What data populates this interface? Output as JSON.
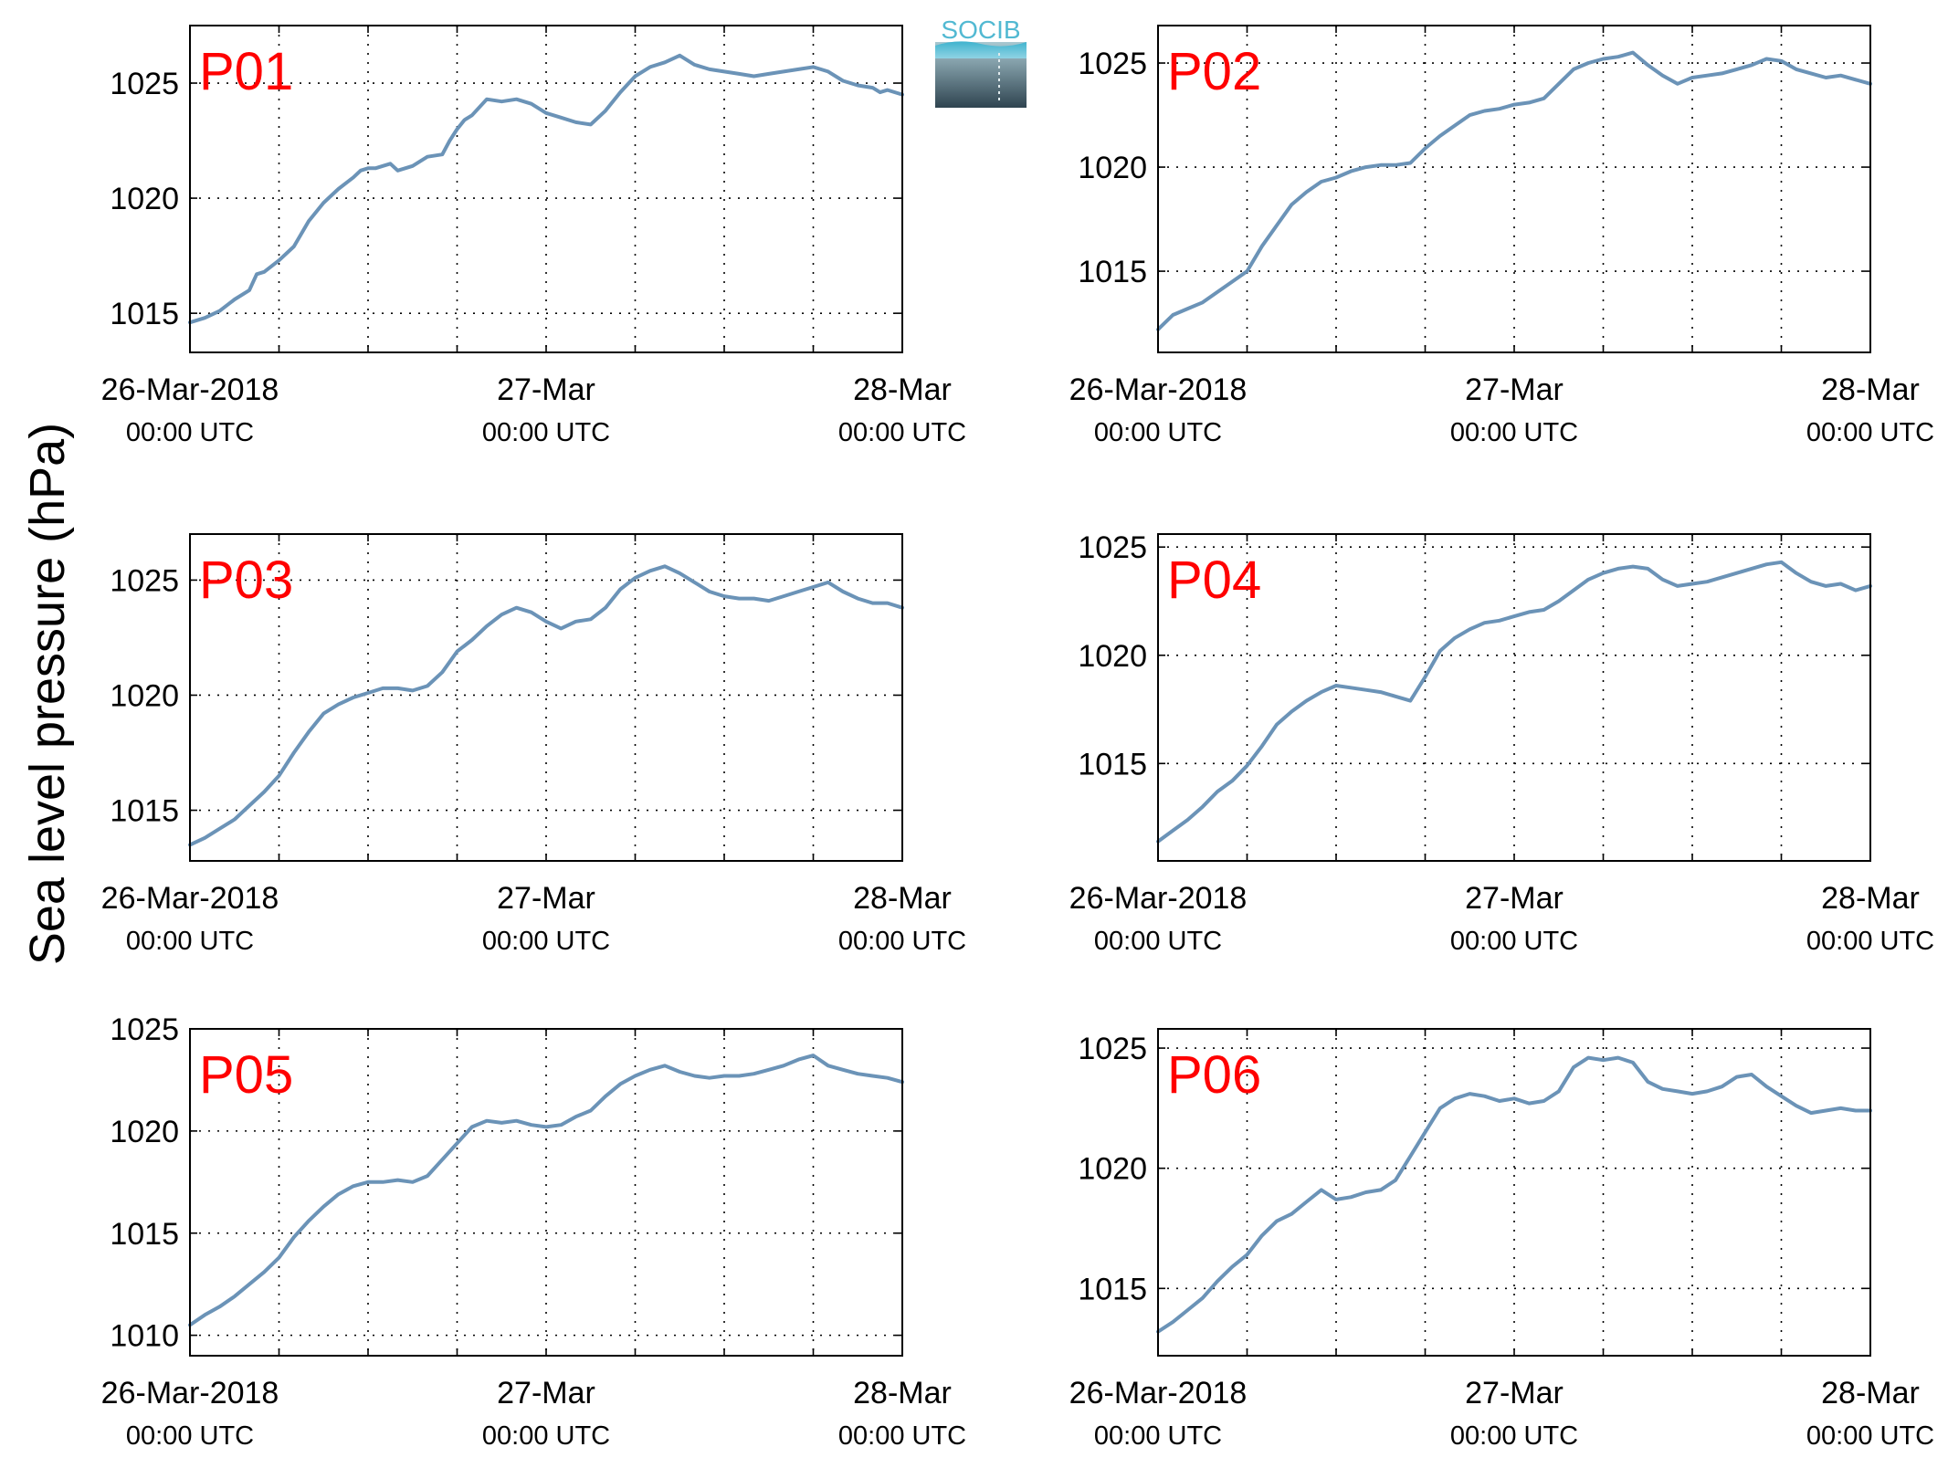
{
  "figure": {
    "ylabel": "Sea level pressure (hPa)",
    "logo_text": "SOCIB"
  },
  "colors": {
    "line": "#6b93b7",
    "panel_label": "#ff0000",
    "grid": "#000000",
    "axes": "#000000"
  },
  "chart_data": [
    {
      "type": "line",
      "panel_label": "P01",
      "x_unit": "hours since 26-Mar-2018 00:00 UTC",
      "xlim": [
        0,
        48
      ],
      "ylim": [
        1013.3,
        1027.5
      ],
      "yticks": [
        1015,
        1020,
        1025
      ],
      "xtick_labels": [
        [
          "26-Mar-2018",
          "00:00 UTC"
        ],
        [
          "27-Mar",
          "00:00 UTC"
        ],
        [
          "28-Mar",
          "00:00 UTC"
        ]
      ],
      "series": [
        {
          "x": [
            0,
            1,
            2,
            3,
            4,
            4.5,
            5,
            6,
            7,
            8,
            9,
            10,
            11,
            11.5,
            12,
            12.5,
            13,
            13.5,
            14,
            15,
            16,
            17,
            17.5,
            18,
            18.5,
            19,
            20,
            21,
            22,
            23,
            24,
            25,
            26,
            27,
            28,
            29,
            30,
            31,
            32,
            33,
            34,
            35,
            36,
            37,
            38,
            39,
            40,
            41,
            42,
            43,
            44,
            45,
            46,
            46.5,
            47,
            48
          ],
          "y": [
            1014.6,
            1014.8,
            1015.1,
            1015.6,
            1016.0,
            1016.7,
            1016.8,
            1017.3,
            1017.9,
            1019.0,
            1019.8,
            1020.4,
            1020.9,
            1021.2,
            1021.3,
            1021.3,
            1021.4,
            1021.5,
            1021.2,
            1021.4,
            1021.8,
            1021.9,
            1022.5,
            1023.0,
            1023.4,
            1023.6,
            1024.3,
            1024.2,
            1024.3,
            1024.1,
            1023.7,
            1023.5,
            1023.3,
            1023.2,
            1023.8,
            1024.6,
            1025.3,
            1025.7,
            1025.9,
            1026.2,
            1025.8,
            1025.6,
            1025.5,
            1025.4,
            1025.3,
            1025.4,
            1025.5,
            1025.6,
            1025.7,
            1025.5,
            1025.1,
            1024.9,
            1024.8,
            1024.6,
            1024.7,
            1024.5
          ]
        }
      ]
    },
    {
      "type": "line",
      "panel_label": "P02",
      "x_unit": "hours since 26-Mar-2018 00:00 UTC",
      "xlim": [
        0,
        48
      ],
      "ylim": [
        1011.1,
        1026.8
      ],
      "yticks": [
        1015,
        1020,
        1025
      ],
      "xtick_labels": [
        [
          "26-Mar-2018",
          "00:00 UTC"
        ],
        [
          "27-Mar",
          "00:00 UTC"
        ],
        [
          "28-Mar",
          "00:00 UTC"
        ]
      ],
      "series": [
        {
          "x": [
            0,
            1,
            2,
            3,
            4,
            5,
            6,
            7,
            8,
            9,
            10,
            11,
            12,
            13,
            14,
            15,
            16,
            17,
            18,
            19,
            20,
            21,
            22,
            23,
            24,
            25,
            26,
            27,
            28,
            29,
            30,
            31,
            32,
            33,
            34,
            35,
            36,
            37,
            38,
            39,
            40,
            41,
            42,
            43,
            44,
            45,
            46,
            47,
            48
          ],
          "y": [
            1012.2,
            1012.9,
            1013.2,
            1013.5,
            1014.0,
            1014.5,
            1015.0,
            1016.2,
            1017.2,
            1018.2,
            1018.8,
            1019.3,
            1019.5,
            1019.8,
            1020.0,
            1020.1,
            1020.1,
            1020.2,
            1020.9,
            1021.5,
            1022.0,
            1022.5,
            1022.7,
            1022.8,
            1023.0,
            1023.1,
            1023.3,
            1024.0,
            1024.7,
            1025.0,
            1025.2,
            1025.3,
            1025.5,
            1024.9,
            1024.4,
            1024.0,
            1024.3,
            1024.4,
            1024.5,
            1024.7,
            1024.9,
            1025.2,
            1025.1,
            1024.7,
            1024.5,
            1024.3,
            1024.4,
            1024.2,
            1024.0
          ]
        }
      ]
    },
    {
      "type": "line",
      "panel_label": "P03",
      "x_unit": "hours since 26-Mar-2018 00:00 UTC",
      "xlim": [
        0,
        48
      ],
      "ylim": [
        1012.8,
        1027.0
      ],
      "yticks": [
        1015,
        1020,
        1025
      ],
      "xtick_labels": [
        [
          "26-Mar-2018",
          "00:00 UTC"
        ],
        [
          "27-Mar",
          "00:00 UTC"
        ],
        [
          "28-Mar",
          "00:00 UTC"
        ]
      ],
      "series": [
        {
          "x": [
            0,
            1,
            2,
            3,
            4,
            5,
            6,
            7,
            8,
            9,
            10,
            11,
            12,
            13,
            14,
            15,
            16,
            17,
            18,
            19,
            20,
            21,
            22,
            23,
            24,
            25,
            26,
            27,
            28,
            29,
            30,
            31,
            32,
            33,
            34,
            35,
            36,
            37,
            38,
            39,
            40,
            41,
            42,
            43,
            44,
            45,
            46,
            47,
            48
          ],
          "y": [
            1013.5,
            1013.8,
            1014.2,
            1014.6,
            1015.2,
            1015.8,
            1016.5,
            1017.5,
            1018.4,
            1019.2,
            1019.6,
            1019.9,
            1020.1,
            1020.3,
            1020.3,
            1020.2,
            1020.4,
            1021.0,
            1021.9,
            1022.4,
            1023.0,
            1023.5,
            1023.8,
            1023.6,
            1023.2,
            1022.9,
            1023.2,
            1023.3,
            1023.8,
            1024.6,
            1025.1,
            1025.4,
            1025.6,
            1025.3,
            1024.9,
            1024.5,
            1024.3,
            1024.2,
            1024.2,
            1024.1,
            1024.3,
            1024.5,
            1024.7,
            1024.9,
            1024.5,
            1024.2,
            1024.0,
            1024.0,
            1023.8
          ]
        }
      ]
    },
    {
      "type": "line",
      "panel_label": "P04",
      "x_unit": "hours since 26-Mar-2018 00:00 UTC",
      "xlim": [
        0,
        48
      ],
      "ylim": [
        1010.5,
        1025.6
      ],
      "yticks": [
        1015,
        1020,
        1025
      ],
      "xtick_labels": [
        [
          "26-Mar-2018",
          "00:00 UTC"
        ],
        [
          "27-Mar",
          "00:00 UTC"
        ],
        [
          "28-Mar",
          "00:00 UTC"
        ]
      ],
      "series": [
        {
          "x": [
            0,
            1,
            2,
            3,
            4,
            5,
            6,
            7,
            8,
            9,
            10,
            11,
            12,
            13,
            14,
            15,
            16,
            17,
            18,
            19,
            20,
            21,
            22,
            23,
            24,
            25,
            26,
            27,
            28,
            29,
            30,
            31,
            32,
            33,
            34,
            35,
            36,
            37,
            38,
            39,
            40,
            41,
            42,
            43,
            44,
            45,
            46,
            47,
            48
          ],
          "y": [
            1011.4,
            1011.9,
            1012.4,
            1013.0,
            1013.7,
            1014.2,
            1014.9,
            1015.8,
            1016.8,
            1017.4,
            1017.9,
            1018.3,
            1018.6,
            1018.5,
            1018.4,
            1018.3,
            1018.1,
            1017.9,
            1019.0,
            1020.2,
            1020.8,
            1021.2,
            1021.5,
            1021.6,
            1021.8,
            1022.0,
            1022.1,
            1022.5,
            1023.0,
            1023.5,
            1023.8,
            1024.0,
            1024.1,
            1024.0,
            1023.5,
            1023.2,
            1023.3,
            1023.4,
            1023.6,
            1023.8,
            1024.0,
            1024.2,
            1024.3,
            1023.8,
            1023.4,
            1023.2,
            1023.3,
            1023.0,
            1023.2
          ]
        }
      ]
    },
    {
      "type": "line",
      "panel_label": "P05",
      "x_unit": "hours since 26-Mar-2018 00:00 UTC",
      "xlim": [
        0,
        48
      ],
      "ylim": [
        1009.0,
        1025.0
      ],
      "yticks": [
        1010,
        1015,
        1020,
        1025
      ],
      "xtick_labels": [
        [
          "26-Mar-2018",
          "00:00 UTC"
        ],
        [
          "27-Mar",
          "00:00 UTC"
        ],
        [
          "28-Mar",
          "00:00 UTC"
        ]
      ],
      "series": [
        {
          "x": [
            0,
            1,
            2,
            3,
            4,
            5,
            6,
            7,
            8,
            9,
            10,
            11,
            12,
            13,
            14,
            15,
            16,
            17,
            18,
            19,
            20,
            21,
            22,
            23,
            24,
            25,
            26,
            27,
            28,
            29,
            30,
            31,
            32,
            33,
            34,
            35,
            36,
            37,
            38,
            39,
            40,
            41,
            42,
            43,
            44,
            45,
            46,
            47,
            48
          ],
          "y": [
            1010.5,
            1011.0,
            1011.4,
            1011.9,
            1012.5,
            1013.1,
            1013.8,
            1014.8,
            1015.6,
            1016.3,
            1016.9,
            1017.3,
            1017.5,
            1017.5,
            1017.6,
            1017.5,
            1017.8,
            1018.6,
            1019.4,
            1020.2,
            1020.5,
            1020.4,
            1020.5,
            1020.3,
            1020.2,
            1020.3,
            1020.7,
            1021.0,
            1021.7,
            1022.3,
            1022.7,
            1023.0,
            1023.2,
            1022.9,
            1022.7,
            1022.6,
            1022.7,
            1022.7,
            1022.8,
            1023.0,
            1023.2,
            1023.5,
            1023.7,
            1023.2,
            1023.0,
            1022.8,
            1022.7,
            1022.6,
            1022.4
          ]
        }
      ]
    },
    {
      "type": "line",
      "panel_label": "P06",
      "x_unit": "hours since 26-Mar-2018 00:00 UTC",
      "xlim": [
        0,
        48
      ],
      "ylim": [
        1012.2,
        1025.8
      ],
      "yticks": [
        1015,
        1020,
        1025
      ],
      "xtick_labels": [
        [
          "26-Mar-2018",
          "00:00 UTC"
        ],
        [
          "27-Mar",
          "00:00 UTC"
        ],
        [
          "28-Mar",
          "00:00 UTC"
        ]
      ],
      "series": [
        {
          "x": [
            0,
            1,
            2,
            3,
            4,
            5,
            6,
            7,
            8,
            9,
            10,
            11,
            12,
            13,
            14,
            15,
            16,
            17,
            18,
            19,
            20,
            21,
            22,
            23,
            24,
            25,
            26,
            27,
            28,
            29,
            30,
            31,
            32,
            33,
            34,
            35,
            36,
            37,
            38,
            39,
            40,
            41,
            42,
            43,
            44,
            45,
            46,
            47,
            48
          ],
          "y": [
            1013.2,
            1013.6,
            1014.1,
            1014.6,
            1015.3,
            1015.9,
            1016.4,
            1017.2,
            1017.8,
            1018.1,
            1018.6,
            1019.1,
            1018.7,
            1018.8,
            1019.0,
            1019.1,
            1019.5,
            1020.5,
            1021.5,
            1022.5,
            1022.9,
            1023.1,
            1023.0,
            1022.8,
            1022.9,
            1022.7,
            1022.8,
            1023.2,
            1024.2,
            1024.6,
            1024.5,
            1024.6,
            1024.4,
            1023.6,
            1023.3,
            1023.2,
            1023.1,
            1023.2,
            1023.4,
            1023.8,
            1023.9,
            1023.4,
            1023.0,
            1022.6,
            1022.3,
            1022.4,
            1022.5,
            1022.4,
            1022.4
          ]
        }
      ]
    }
  ]
}
